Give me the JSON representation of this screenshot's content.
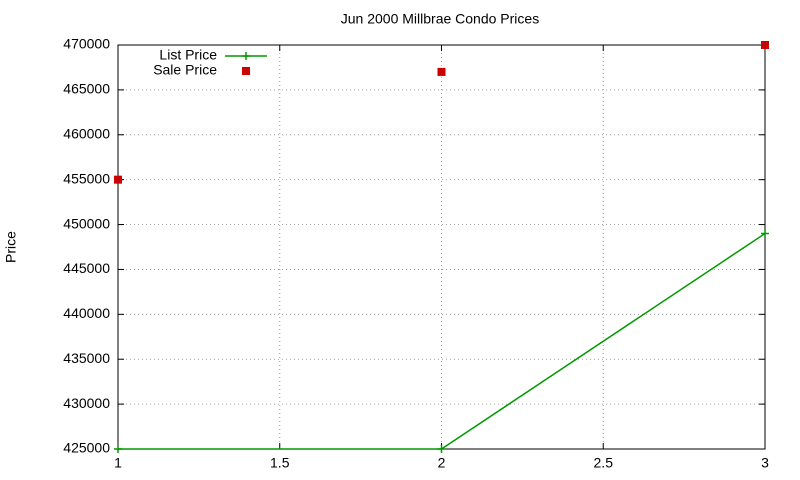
{
  "chart_data": {
    "type": "line",
    "title": "Jun 2000 Millbrae Condo Prices",
    "y_label": "Price",
    "x": [
      1,
      2,
      3
    ],
    "series": [
      {
        "name": "List Price",
        "color": "#009900",
        "style": "linespoints",
        "values": [
          425000,
          425000,
          449000
        ]
      },
      {
        "name": "Sale Price",
        "color": "#cc0000",
        "style": "points",
        "values": [
          455000,
          467000,
          470000
        ]
      }
    ],
    "xlim": [
      1,
      3
    ],
    "xticks": [
      1,
      1.5,
      2,
      2.5,
      3
    ],
    "ylim": [
      425000,
      470000
    ],
    "yticks": [
      425000,
      430000,
      435000,
      440000,
      445000,
      450000,
      455000,
      460000,
      465000,
      470000
    ],
    "grid": true,
    "legend": "top-left"
  }
}
